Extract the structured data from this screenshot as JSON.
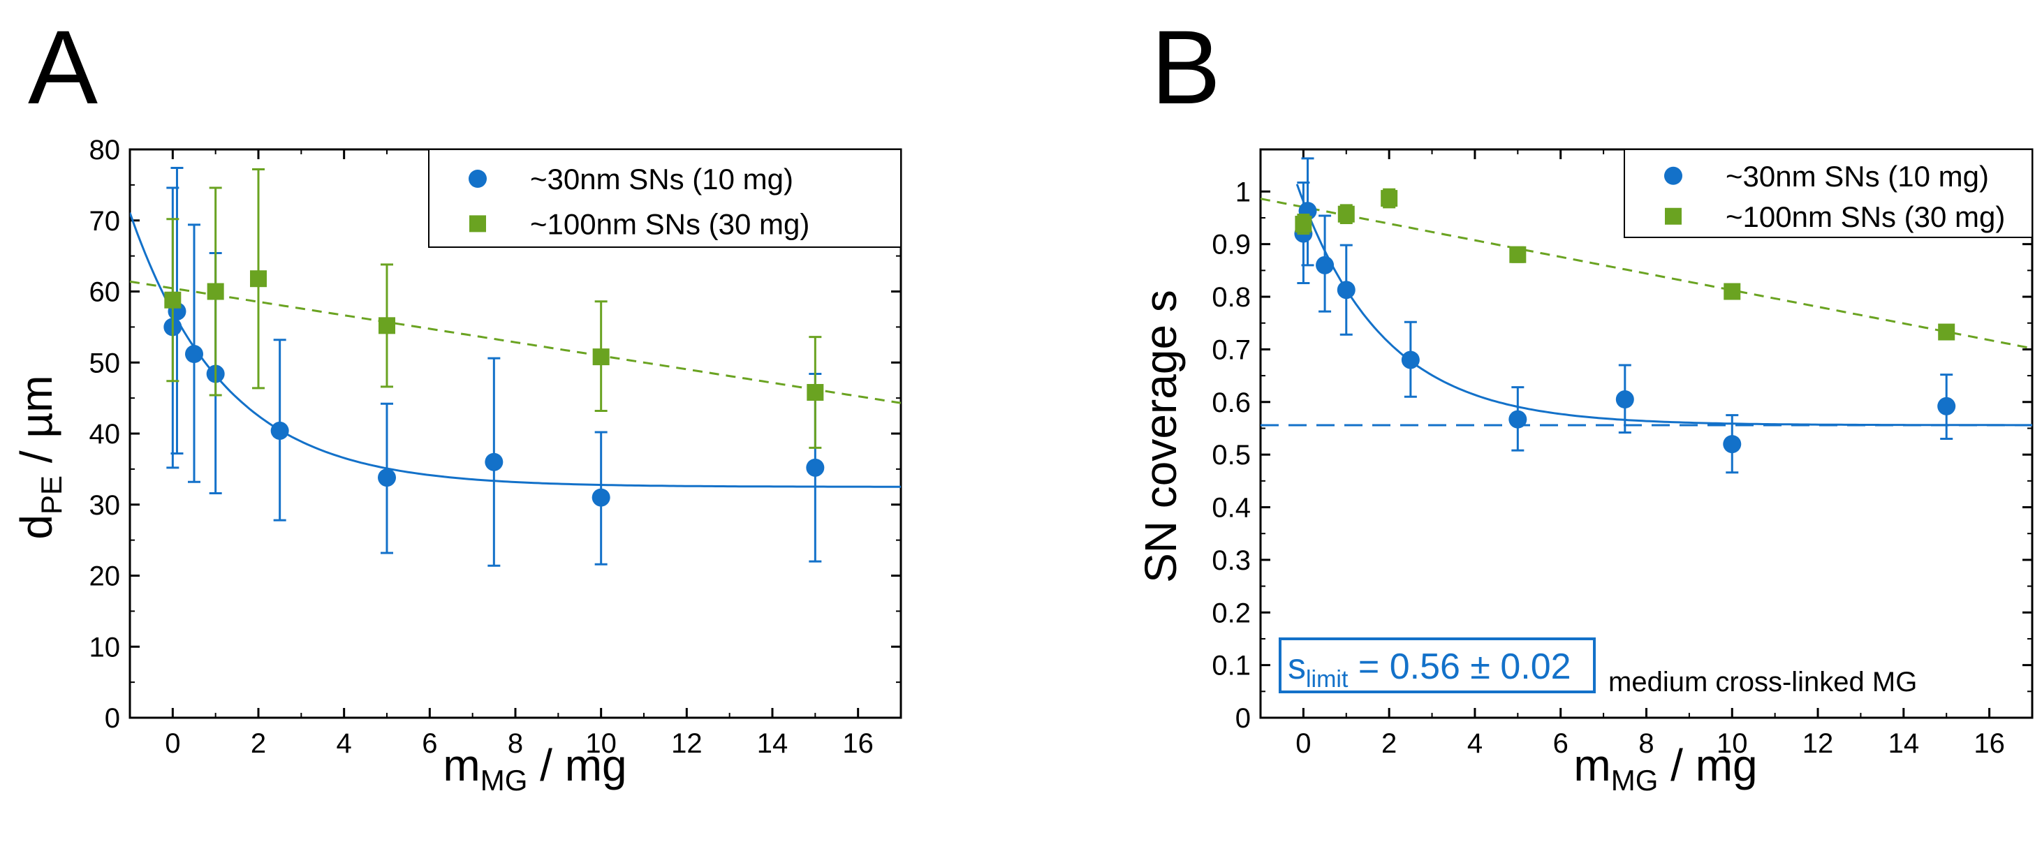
{
  "colors": {
    "blue": "#1371c9",
    "green": "#6aa321",
    "axis": "#000000"
  },
  "chart_data": [
    {
      "type": "scatter",
      "panel_label": "A",
      "xlabel_main": "m",
      "xlabel_sub": "MG",
      "xlabel_rest": " / mg",
      "ylabel_main": "d",
      "ylabel_sub": "PE",
      "ylabel_rest": " / µm",
      "xlim": [
        -1,
        17
      ],
      "ylim": [
        0,
        80
      ],
      "xticks": [
        0,
        2,
        4,
        6,
        8,
        10,
        12,
        14,
        16
      ],
      "yticks": [
        0,
        10,
        20,
        30,
        40,
        50,
        60,
        70,
        80
      ],
      "legend_position": "top-right",
      "series": [
        {
          "name": "~30nm SNs (10 mg)",
          "marker": "circle",
          "color": "#1371c9",
          "x": [
            0,
            0.1,
            0.5,
            1,
            2.5,
            5,
            7.5,
            10,
            15
          ],
          "y": [
            55,
            57.2,
            51.2,
            48.4,
            40.4,
            33.8,
            36,
            31,
            35.2
          ],
          "yerr_low": [
            35.2,
            37.2,
            33.2,
            31.6,
            27.8,
            23.2,
            21.4,
            21.6,
            22
          ],
          "yerr_high": [
            74.6,
            77.4,
            69.4,
            65.4,
            53.2,
            44.2,
            50.6,
            40.2,
            48.4
          ]
        },
        {
          "name": "~100nm SNs (30 mg)",
          "marker": "square",
          "color": "#6aa321",
          "x": [
            0,
            1,
            2,
            5,
            10,
            15
          ],
          "y": [
            58.8,
            60,
            61.8,
            55.2,
            50.8,
            45.8
          ],
          "yerr_low": [
            47.4,
            45.4,
            46.4,
            46.6,
            43.2,
            38
          ],
          "yerr_high": [
            70.2,
            74.6,
            77.2,
            63.8,
            58.6,
            53.6
          ]
        }
      ],
      "fits": [
        {
          "series": "~30nm SNs (10 mg)",
          "kind": "exponential",
          "style": "solid",
          "color": "#1371c9",
          "x_range": [
            -1,
            17
          ],
          "a": 32.5,
          "b": 24.6,
          "k": 0.45
        },
        {
          "series": "~100nm SNs (30 mg)",
          "kind": "linear",
          "style": "dashed",
          "color": "#6aa321",
          "x_range": [
            -1,
            17
          ],
          "intercept": 60.45,
          "slope": -0.95
        }
      ]
    },
    {
      "type": "scatter",
      "panel_label": "B",
      "xlabel_main": "m",
      "xlabel_sub": "MG",
      "xlabel_rest": " / mg",
      "ylabel": "SN coverage s",
      "xlim": [
        -1,
        17
      ],
      "ylim": [
        0,
        1.08
      ],
      "xticks": [
        0,
        2,
        4,
        6,
        8,
        10,
        12,
        14,
        16
      ],
      "yticks": [
        0,
        0.1,
        0.2,
        0.3,
        0.4,
        0.5,
        0.6,
        0.7,
        0.8,
        0.9,
        1
      ],
      "ytick_labels": [
        "0",
        "0.1",
        "0.2",
        "0.3",
        "0.4",
        "0.5",
        "0.6",
        "0.7",
        "0.8",
        "0.9",
        "1"
      ],
      "legend_position": "top-right",
      "series": [
        {
          "name": "~30nm SNs (10 mg)",
          "marker": "circle",
          "color": "#1371c9",
          "x": [
            0,
            0.1,
            0.5,
            1,
            2.5,
            5,
            7.5,
            10,
            15
          ],
          "y": [
            0.92,
            0.963,
            0.86,
            0.813,
            0.68,
            0.567,
            0.605,
            0.52,
            0.592
          ],
          "yerr_low": [
            0.826,
            0.86,
            0.772,
            0.728,
            0.61,
            0.508,
            0.542,
            0.466,
            0.53
          ],
          "yerr_high": [
            1.017,
            1.063,
            0.954,
            0.898,
            0.752,
            0.628,
            0.67,
            0.575,
            0.652
          ]
        },
        {
          "name": "~100nm SNs (30 mg)",
          "marker": "square",
          "color": "#6aa321",
          "x": [
            0,
            1,
            2,
            5,
            10,
            15
          ],
          "y": [
            0.938,
            0.957,
            0.987,
            0.88,
            0.81,
            0.733
          ],
          "yerr_low": [
            0.92,
            0.94,
            0.97,
            0.866,
            0.796,
            0.72
          ],
          "yerr_high": [
            0.956,
            0.974,
            1.004,
            0.894,
            0.824,
            0.746
          ]
        }
      ],
      "fits": [
        {
          "series": "~30nm SNs (10 mg)",
          "kind": "exponential",
          "style": "solid",
          "color": "#1371c9",
          "x_range": [
            -0.15,
            17
          ],
          "a": 0.556,
          "b": 0.425,
          "k": 0.5
        },
        {
          "series": "~100nm SNs (30 mg)",
          "kind": "linear",
          "style": "dashed",
          "color": "#6aa321",
          "x_range": [
            -1,
            17
          ],
          "intercept": 0.9705,
          "slope": -0.0158
        }
      ],
      "hlines": [
        {
          "y": 0.556,
          "style": "dashed",
          "color": "#1371c9"
        }
      ],
      "annotations": {
        "boxed_main": "s",
        "boxed_sub": "limit",
        "boxed_rest": " = 0.56 ± 0.02",
        "note": "medium cross-linked MG"
      }
    }
  ]
}
